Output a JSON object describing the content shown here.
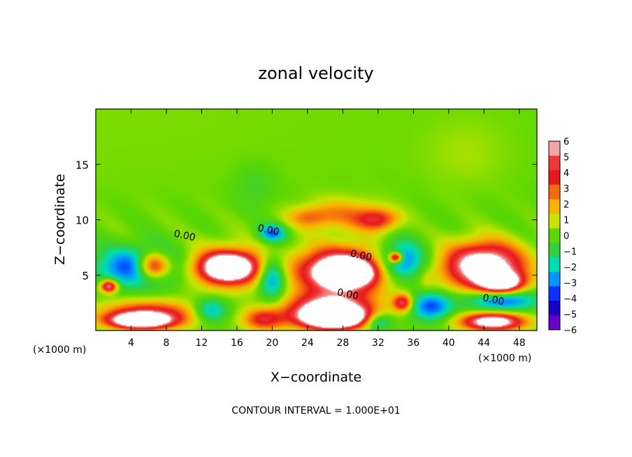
{
  "chart_data": {
    "type": "heatmap",
    "title": "zonal velocity",
    "xlabel": "X−coordinate",
    "ylabel": "Z−coordinate",
    "x_unit_left": "(×1000 m)",
    "x_unit_right": "(×1000 m)",
    "footer": "CONTOUR INTERVAL = 1.000E+01",
    "xlim": [
      0,
      50
    ],
    "ylim": [
      0,
      20
    ],
    "x_ticks": [
      4,
      8,
      12,
      16,
      20,
      24,
      28,
      32,
      36,
      40,
      44,
      48
    ],
    "y_ticks": [
      5,
      10,
      15
    ],
    "colorbar": {
      "ticks": [
        6,
        5,
        4,
        3,
        2,
        1,
        0,
        -1,
        -2,
        -3,
        -4,
        -5,
        -6
      ],
      "colors": [
        "#f4a6a6",
        "#f03838",
        "#e8181c",
        "#f56a10",
        "#f8b400",
        "#c8e400",
        "#5cd800",
        "#36ce3a",
        "#00ddb0",
        "#0098ff",
        "#0830ff",
        "#1800c0",
        "#6a00c8"
      ]
    },
    "contour_labels": [
      {
        "text": "0.00",
        "x": 10,
        "z": 8.3
      },
      {
        "text": "0.00",
        "x": 19.5,
        "z": 8.8
      },
      {
        "text": "0.00",
        "x": 30,
        "z": 6.5
      },
      {
        "text": "0.00",
        "x": 28.5,
        "z": 3
      },
      {
        "text": "0.00",
        "x": 45,
        "z": 2.5
      }
    ],
    "blobs": [
      {
        "x": 0,
        "z": 19.5,
        "rx": 50,
        "rz": 11,
        "v": 0.3
      },
      {
        "x": 42,
        "z": 16,
        "rx": 6,
        "rz": 4,
        "v": 0.6
      },
      {
        "x": 18,
        "z": 13,
        "rx": 3,
        "rz": 2.5,
        "v": -0.8
      },
      {
        "x": 28,
        "z": 10.5,
        "rx": 5,
        "rz": 1.8,
        "v": 2.4
      },
      {
        "x": 32,
        "z": 10,
        "rx": 3,
        "rz": 1.3,
        "v": 3.8
      },
      {
        "x": 24,
        "z": 10.2,
        "rx": 3,
        "rz": 1.2,
        "v": 2.2
      },
      {
        "x": 20,
        "z": 8.8,
        "rx": 2,
        "rz": 1,
        "v": -3.5
      },
      {
        "x": 5,
        "z": 5.7,
        "rx": 5.8,
        "rz": 2.2,
        "v": -4.6
      },
      {
        "x": 6.5,
        "z": 5.8,
        "rx": 2.4,
        "rz": 1.5,
        "v": 7
      },
      {
        "x": 1.5,
        "z": 4,
        "rx": 1.2,
        "rz": 0.7,
        "v": 6.5
      },
      {
        "x": 15,
        "z": 5.7,
        "rx": 6,
        "rz": 2.5,
        "v": 3.8
      },
      {
        "x": 15,
        "z": 5.7,
        "rx": 3.6,
        "rz": 1.5,
        "v": 8
      },
      {
        "x": 20,
        "z": 4.8,
        "rx": 2,
        "rz": 2.5,
        "v": -4.2
      },
      {
        "x": 28,
        "z": 5.4,
        "rx": 6.5,
        "rz": 2.6,
        "v": 8
      },
      {
        "x": 28.2,
        "z": 5.2,
        "rx": 3,
        "rz": 1.2,
        "v": 12
      },
      {
        "x": 34.5,
        "z": 6.2,
        "rx": 3.5,
        "rz": 2.2,
        "v": -4.5
      },
      {
        "x": 34,
        "z": 6.6,
        "rx": 0.9,
        "rz": 0.6,
        "v": 7
      },
      {
        "x": 34.8,
        "z": 2.5,
        "rx": 1.4,
        "rz": 1,
        "v": 5
      },
      {
        "x": 44,
        "z": 5.8,
        "rx": 5.5,
        "rz": 2.6,
        "v": 8.5
      },
      {
        "x": 46,
        "z": 4.3,
        "rx": 3,
        "rz": 1.2,
        "v": 7.5
      },
      {
        "x": 46,
        "z": 2.8,
        "rx": 5,
        "rz": 1.3,
        "v": -4.2
      },
      {
        "x": 38,
        "z": 2.2,
        "rx": 3,
        "rz": 1.6,
        "v": -3.8
      },
      {
        "x": 6,
        "z": 1.4,
        "rx": 7,
        "rz": 1.6,
        "v": 5
      },
      {
        "x": 5,
        "z": 0.9,
        "rx": 4,
        "rz": 0.8,
        "v": 8
      },
      {
        "x": 13,
        "z": 1.8,
        "rx": 2.5,
        "rz": 1.4,
        "v": -3.2
      },
      {
        "x": 19,
        "z": 1,
        "rx": 3,
        "rz": 1.3,
        "v": 4
      },
      {
        "x": 26.5,
        "z": 1.8,
        "rx": 6,
        "rz": 2,
        "v": 7.5
      },
      {
        "x": 27,
        "z": 1.2,
        "rx": 4,
        "rz": 1.1,
        "v": 10
      },
      {
        "x": 32,
        "z": 0.8,
        "rx": 2,
        "rz": 1,
        "v": -3
      },
      {
        "x": 45,
        "z": 0.8,
        "rx": 4.5,
        "rz": 1,
        "v": 8
      },
      {
        "x": 37.5,
        "z": 4.5,
        "rx": 1.2,
        "rz": 1.2,
        "v": 0.8
      }
    ]
  }
}
